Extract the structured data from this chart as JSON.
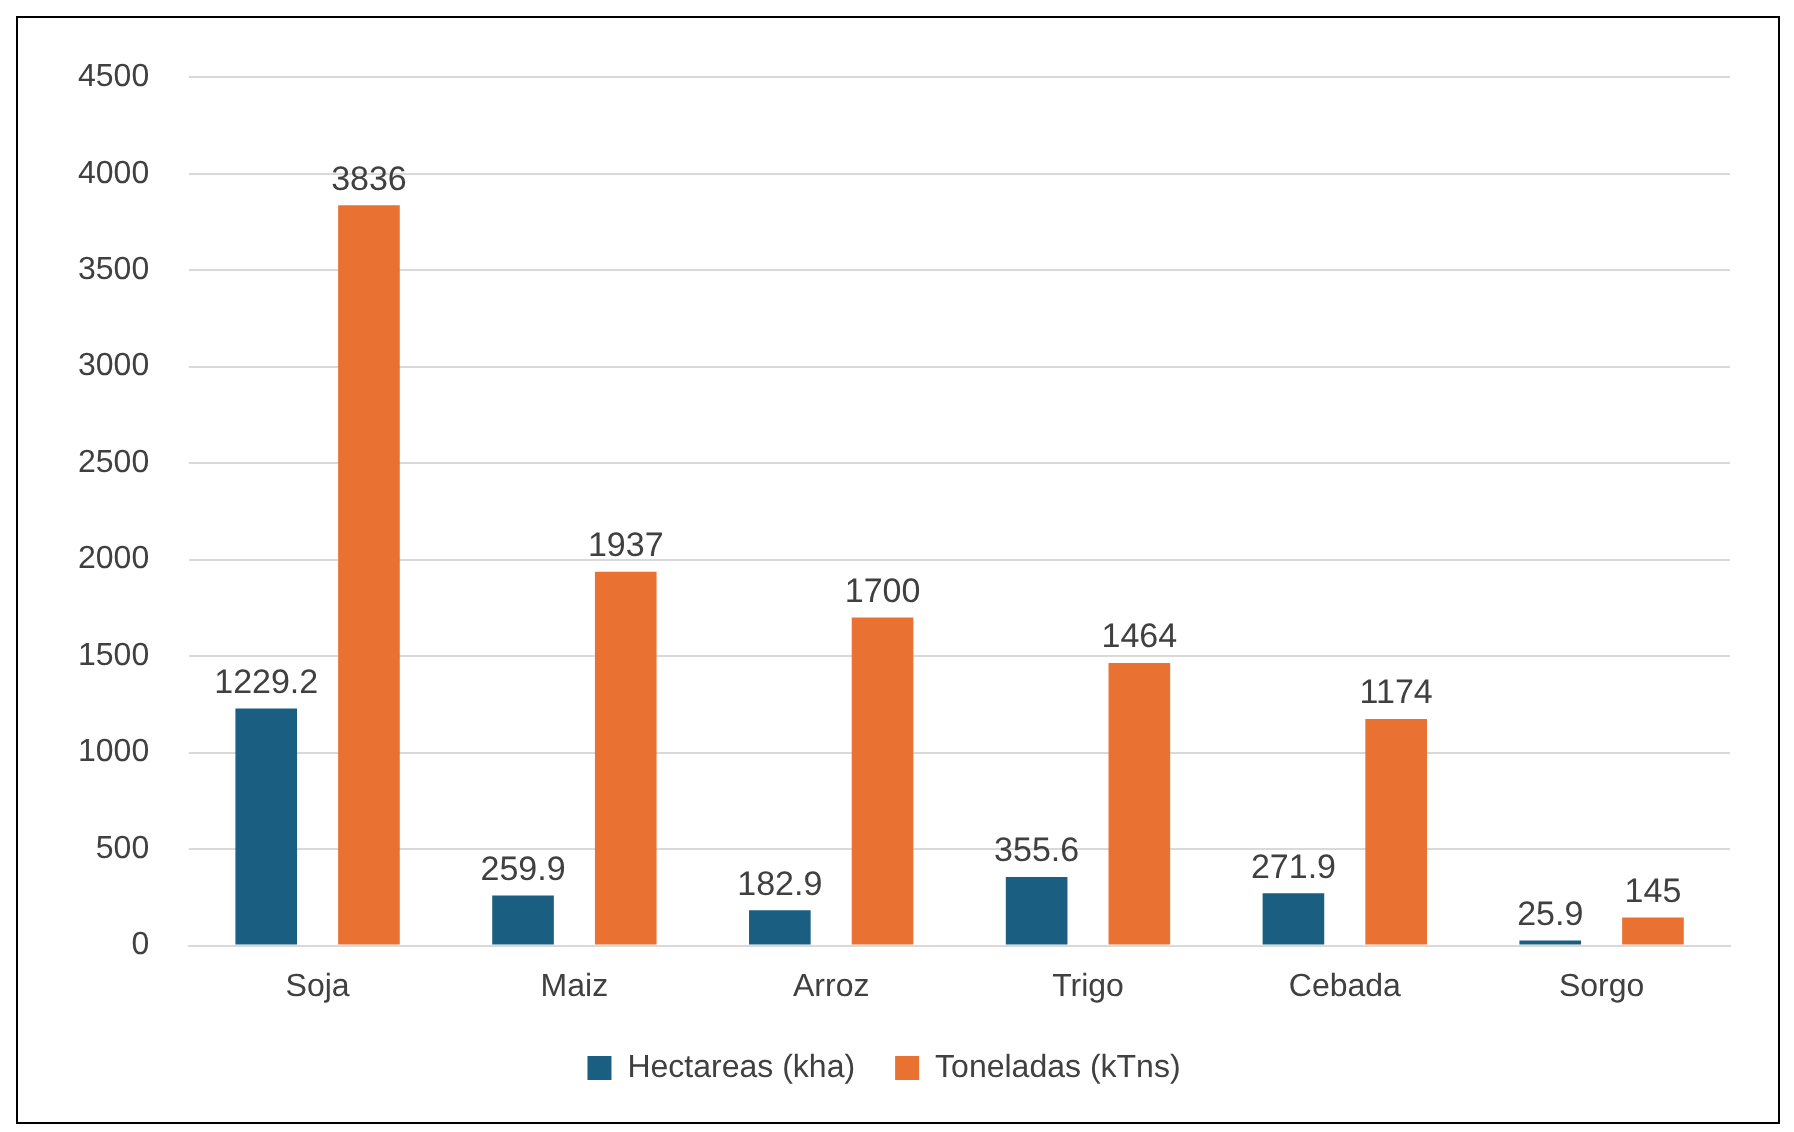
{
  "chart_data": {
    "type": "bar",
    "categories": [
      "Soja",
      "Maiz",
      "Arroz",
      "Trigo",
      "Cebada",
      "Sorgo"
    ],
    "series": [
      {
        "name": "Hectareas (kha)",
        "color": "#1a5f82",
        "values": [
          1229.2,
          259.9,
          182.9,
          355.6,
          271.9,
          25.9
        ]
      },
      {
        "name": "Toneladas (kTns)",
        "color": "#e97132",
        "values": [
          3836,
          1937,
          1700,
          1464,
          1174,
          145
        ]
      }
    ],
    "ylim": [
      0,
      4500
    ],
    "yticks": [
      0,
      500,
      1000,
      1500,
      2000,
      2500,
      3000,
      3500,
      4000,
      4500
    ],
    "grid": "y",
    "legend": "bottom",
    "data_labels": true
  }
}
